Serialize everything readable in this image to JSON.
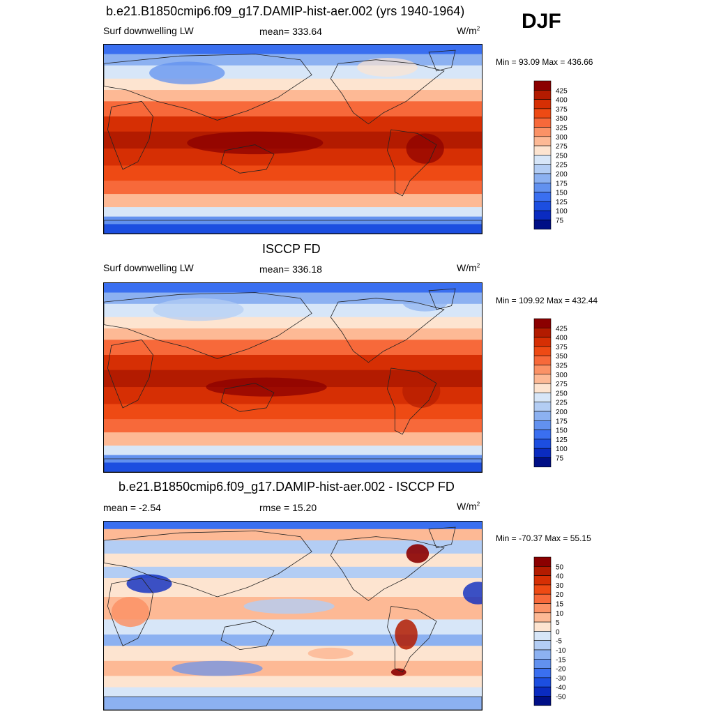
{
  "season": "DJF",
  "units_base": "W/m",
  "units_exp": "2",
  "panels": [
    {
      "title": "b.e21.B1850cmip6.f09_g17.DAMIP-hist-aer.002 (yrs 1940-1964)",
      "left_label": "Surf downwelling LW",
      "center_label": "mean= 333.64",
      "minmax": "Min =  93.09 Max = 436.66"
    },
    {
      "title": "ISCCP FD",
      "left_label": "Surf downwelling LW",
      "center_label": "mean= 336.18",
      "minmax": "Min = 109.92 Max = 432.44"
    },
    {
      "title": "b.e21.B1850cmip6.f09_g17.DAMIP-hist-aer.002 - ISCCP FD",
      "left_label": "mean =  -2.54",
      "center_label": "rmse =  15.20",
      "minmax": "Min = -70.37 Max =  55.15"
    }
  ],
  "chart_data": [
    {
      "type": "heatmap",
      "title": "b.e21.B1850cmip6.f09_g17.DAMIP-hist-aer.002 (yrs 1940-1964)",
      "variable": "Surf downwelling LW",
      "units": "W/m^2",
      "mean": 333.64,
      "min": 93.09,
      "max": 436.66,
      "colorbar_levels": [
        "425",
        "400",
        "375",
        "350",
        "325",
        "300",
        "275",
        "250",
        "225",
        "200",
        "175",
        "150",
        "125",
        "100",
        "75"
      ],
      "colors": [
        "#8b0000",
        "#b31b00",
        "#d62f04",
        "#ee4a14",
        "#f7693a",
        "#fb9266",
        "#fdb995",
        "#fde4d0",
        "#d7e6f8",
        "#b3cdf4",
        "#8cb1f1",
        "#6291ef",
        "#3a6ff0",
        "#1c4ee0",
        "#0a2bc0",
        "#000f86"
      ]
    },
    {
      "type": "heatmap",
      "title": "ISCCP FD",
      "variable": "Surf downwelling LW",
      "units": "W/m^2",
      "mean": 336.18,
      "min": 109.92,
      "max": 432.44,
      "colorbar_levels": [
        "425",
        "400",
        "375",
        "350",
        "325",
        "300",
        "275",
        "250",
        "225",
        "200",
        "175",
        "150",
        "125",
        "100",
        "75"
      ],
      "colors": [
        "#8b0000",
        "#b31b00",
        "#d62f04",
        "#ee4a14",
        "#f7693a",
        "#fb9266",
        "#fdb995",
        "#fde4d0",
        "#d7e6f8",
        "#b3cdf4",
        "#8cb1f1",
        "#6291ef",
        "#3a6ff0",
        "#1c4ee0",
        "#0a2bc0",
        "#000f86"
      ]
    },
    {
      "type": "heatmap",
      "title": "b.e21.B1850cmip6.f09_g17.DAMIP-hist-aer.002 - ISCCP FD",
      "units": "W/m^2",
      "mean": -2.54,
      "rmse": 15.2,
      "min": -70.37,
      "max": 55.15,
      "colorbar_levels": [
        "50",
        "40",
        "30",
        "20",
        "15",
        "10",
        "5",
        "0",
        "-5",
        "-10",
        "-15",
        "-20",
        "-30",
        "-40",
        "-50"
      ],
      "colors": [
        "#8b0000",
        "#b31b00",
        "#d62f04",
        "#ee4a14",
        "#f7693a",
        "#fb9266",
        "#fdb995",
        "#fde4d0",
        "#d7e6f8",
        "#b3cdf4",
        "#8cb1f1",
        "#6291ef",
        "#3a6ff0",
        "#1c4ee0",
        "#0a2bc0",
        "#000f86"
      ]
    }
  ]
}
